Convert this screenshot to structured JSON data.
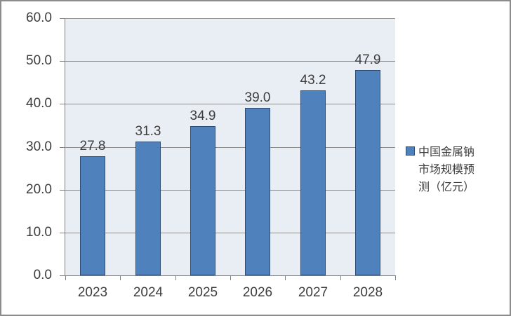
{
  "chart_data": {
    "type": "bar",
    "title": "",
    "categories": [
      "2023",
      "2024",
      "2025",
      "2026",
      "2027",
      "2028"
    ],
    "values": [
      27.8,
      31.3,
      34.9,
      39.0,
      43.2,
      47.9
    ],
    "value_labels": [
      "27.8",
      "31.3",
      "34.9",
      "39.0",
      "43.2",
      "47.9"
    ],
    "xlabel": "",
    "ylabel": "",
    "ylim": [
      0,
      60
    ],
    "ytick_step": 10,
    "ytick_labels": [
      "0.0",
      "10.0",
      "20.0",
      "30.0",
      "40.0",
      "50.0",
      "60.0"
    ],
    "grid": true,
    "legend": {
      "label": "中国金属钠市场规模预测（亿元）",
      "position": "right"
    },
    "colors": {
      "bar_fill": "#4F81BD",
      "bar_border": "#2E4D76",
      "plot_bg": "#E9EDF4",
      "gridline": "#8C8C8C",
      "axis": "#808080",
      "text": "#3D3D3D",
      "frame_border": "#8C8C8C",
      "background": "#FFFFFF"
    }
  }
}
